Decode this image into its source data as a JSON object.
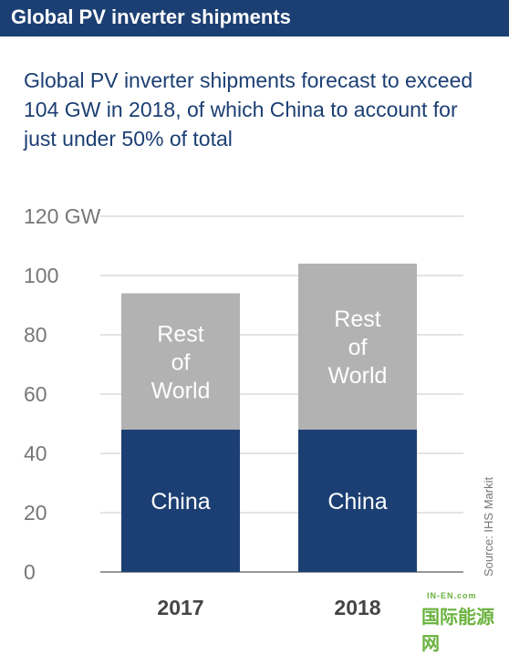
{
  "header": {
    "title": "Global PV inverter shipments"
  },
  "subtitle": "Global PV inverter shipments forecast to exceed 104 GW in 2018, of which China to account for just under 50% of total",
  "source_note": "Source: IHS Markit",
  "watermark": {
    "small": "IN-EN.com",
    "main": "国际能源网"
  },
  "colors": {
    "header": "#1c3f73",
    "china": "#1c3f73",
    "rest_of_world": "#b2b2b2",
    "axis_text": "#777777",
    "grid": "#c8c8c8",
    "logo": "#6ab23e"
  },
  "chart_data": {
    "type": "bar",
    "stacked": true,
    "categories": [
      "2017",
      "2018"
    ],
    "series": [
      {
        "name": "China",
        "label": "China",
        "values": [
          48,
          48
        ]
      },
      {
        "name": "Rest of World",
        "label": [
          "Rest",
          "of",
          "World"
        ],
        "values": [
          46,
          56
        ]
      }
    ],
    "ylim": [
      0,
      120
    ],
    "y_ticks": [
      "0",
      "20",
      "40",
      "60",
      "80",
      "100",
      "120 GW"
    ],
    "grid": true,
    "legend": "in-bar labels"
  }
}
